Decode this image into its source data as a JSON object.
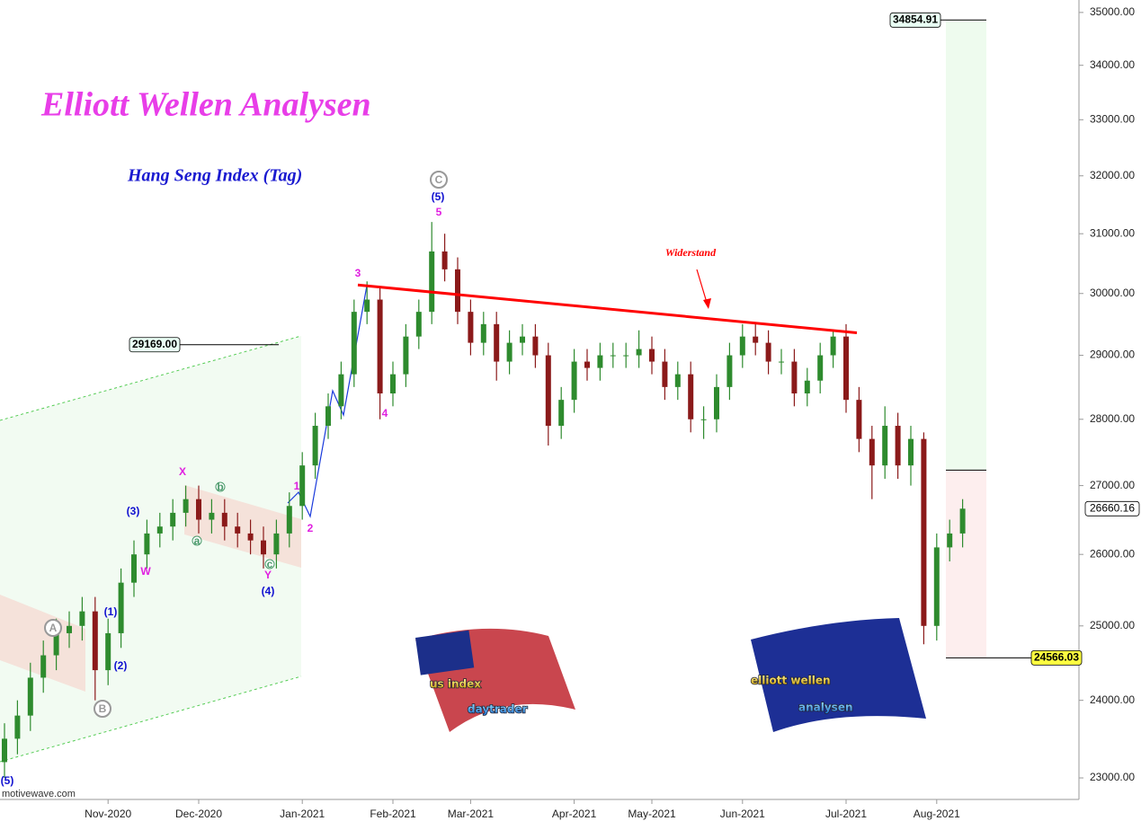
{
  "chart_data": {
    "type": "candlestick",
    "title": "Elliott Wellen Analysen",
    "subtitle": "Hang Seng Index (Tag)",
    "watermark": "motivewave.com",
    "log_scale": true,
    "up_color": "#2e8b2e",
    "down_color": "#8b1a1a",
    "ylim": [
      22730,
      35240
    ],
    "yticks": [
      {
        "value": 23000,
        "label": "23000.00"
      },
      {
        "value": 24000,
        "label": "24000.00"
      },
      {
        "value": 25000,
        "label": "25000.00"
      },
      {
        "value": 26000,
        "label": "26000.00"
      },
      {
        "value": 27000,
        "label": "27000.00"
      },
      {
        "value": 28000,
        "label": "28000.00"
      },
      {
        "value": 29000,
        "label": "29000.00"
      },
      {
        "value": 30000,
        "label": "30000.00"
      },
      {
        "value": 31000,
        "label": "31000.00"
      },
      {
        "value": 32000,
        "label": "32000.00"
      },
      {
        "value": 33000,
        "label": "33000.00"
      },
      {
        "value": 34000,
        "label": "34000.00"
      },
      {
        "value": 35000,
        "label": "35000.00"
      }
    ],
    "categories": [
      null,
      null,
      null,
      null,
      null,
      null,
      null,
      null,
      "Nov-2020",
      null,
      null,
      null,
      null,
      null,
      null,
      "Dec-2020",
      null,
      null,
      null,
      null,
      null,
      null,
      null,
      "Jan-2021",
      null,
      null,
      null,
      null,
      null,
      null,
      "Feb-2021",
      null,
      null,
      null,
      null,
      null,
      "Mar-2021",
      null,
      null,
      null,
      null,
      null,
      null,
      null,
      "Apr-2021",
      null,
      null,
      null,
      null,
      null,
      "May-2021",
      null,
      null,
      null,
      null,
      null,
      null,
      "Jun-2021",
      null,
      null,
      null,
      null,
      null,
      null,
      null,
      "Jul-2021",
      null,
      null,
      null,
      null,
      null,
      null,
      "Aug-2021",
      null,
      null
    ],
    "open": [
      23200,
      23500,
      23800,
      24300,
      24600,
      24900,
      25000,
      25200,
      24400,
      24900,
      25600,
      26000,
      26300,
      26400,
      26600,
      26800,
      26500,
      26600,
      26400,
      26300,
      26200,
      26000,
      26300,
      26700,
      27300,
      27900,
      28200,
      28700,
      29700,
      29900,
      28400,
      28700,
      29300,
      29700,
      30700,
      30400,
      29700,
      29200,
      29500,
      28900,
      29200,
      29300,
      29000,
      27900,
      28300,
      28900,
      28800,
      29000,
      29000,
      29000,
      29100,
      28900,
      28500,
      28700,
      28000,
      28000,
      28500,
      29000,
      29300,
      29200,
      28900,
      28900,
      28400,
      28600,
      29000,
      29300,
      28300,
      27700,
      27300,
      27900,
      27300,
      27700,
      25000,
      26100,
      26300
    ],
    "high": [
      23700,
      24000,
      24500,
      24800,
      25100,
      25200,
      25400,
      25400,
      25100,
      25800,
      26200,
      26500,
      26600,
      26800,
      27000,
      27000,
      26800,
      26800,
      26600,
      26500,
      26400,
      26500,
      26900,
      27500,
      28100,
      28400,
      28900,
      29900,
      30200,
      30100,
      28900,
      29500,
      29900,
      31200,
      31000,
      30600,
      29900,
      29700,
      29700,
      29400,
      29500,
      29500,
      29200,
      28500,
      29100,
      29100,
      29200,
      29200,
      29200,
      29400,
      29300,
      29100,
      28900,
      28900,
      28200,
      28700,
      29200,
      29500,
      29500,
      29400,
      29100,
      29100,
      28800,
      29200,
      29400,
      29500,
      28500,
      27900,
      28200,
      28100,
      27900,
      27800,
      26300,
      26500,
      26800
    ],
    "low": [
      23000,
      23300,
      23600,
      24100,
      24400,
      24700,
      24800,
      24000,
      24200,
      24700,
      25400,
      25800,
      26100,
      26200,
      26400,
      26300,
      26300,
      26200,
      26100,
      26000,
      25800,
      25800,
      26100,
      26500,
      27100,
      27700,
      28000,
      28500,
      29500,
      28000,
      28200,
      28500,
      29100,
      29500,
      30200,
      29500,
      29000,
      29000,
      28600,
      28700,
      29000,
      28800,
      27600,
      27700,
      28100,
      28600,
      28600,
      28800,
      28800,
      28800,
      28700,
      28300,
      28300,
      27800,
      27700,
      27800,
      28300,
      28800,
      29000,
      28700,
      28700,
      28200,
      28200,
      28400,
      28800,
      28100,
      27500,
      26800,
      27100,
      27100,
      27000,
      24750,
      24800,
      25900,
      26100
    ],
    "close": [
      23500,
      23800,
      24300,
      24600,
      24900,
      25000,
      25200,
      24400,
      24900,
      25600,
      26000,
      26300,
      26400,
      26600,
      26800,
      26500,
      26600,
      26400,
      26300,
      26200,
      26000,
      26300,
      26700,
      27300,
      27900,
      28200,
      28700,
      29700,
      29900,
      28400,
      28700,
      29300,
      29700,
      30700,
      30400,
      29700,
      29200,
      29500,
      28900,
      29200,
      29300,
      29000,
      27900,
      28300,
      28900,
      28800,
      29000,
      29000,
      29000,
      29100,
      28900,
      28500,
      28700,
      28000,
      28000,
      28500,
      29000,
      29300,
      29200,
      28900,
      28900,
      28400,
      28600,
      29000,
      29300,
      28300,
      27700,
      27300,
      27900,
      27300,
      27700,
      25000,
      26100,
      26300,
      26660.16
    ],
    "resistance": {
      "label": "Widerstand",
      "start": 30140,
      "end": 29360,
      "color": "#ff0000"
    },
    "price_labels": [
      34854.91,
      {
        "value": 29169,
        "label": "29169.00"
      },
      24566.03,
      26660.16
    ],
    "entry_level": 27230,
    "wave_labels": [
      "3",
      "4",
      "5",
      "1",
      "2",
      "X",
      "Y",
      "W",
      "(5)",
      "(3)",
      "(4)",
      "(1)",
      "(2)",
      "(5)",
      "C",
      "A",
      "B",
      "b",
      "a",
      "c"
    ],
    "logos": [
      "us index",
      "daytrader",
      "elliott wellen",
      "analysen"
    ]
  }
}
